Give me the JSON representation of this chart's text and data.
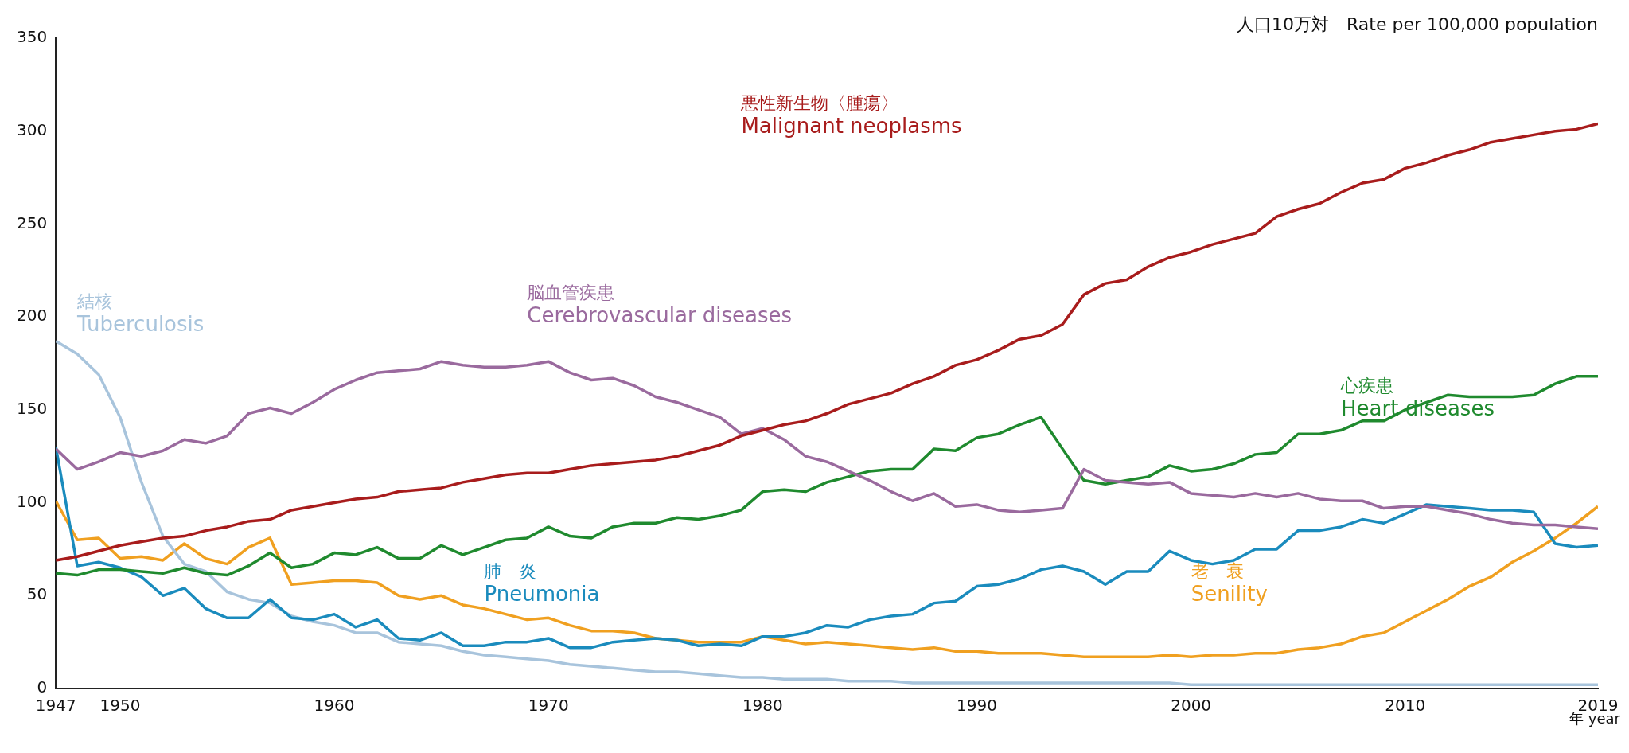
{
  "chart_data": {
    "type": "line",
    "ylabel": "人口10万対　Rate per 100,000 population",
    "xlabel": "年 year",
    "x": [
      1947,
      1948,
      1949,
      1950,
      1951,
      1952,
      1953,
      1954,
      1955,
      1956,
      1957,
      1958,
      1959,
      1960,
      1961,
      1962,
      1963,
      1964,
      1965,
      1966,
      1967,
      1968,
      1969,
      1970,
      1971,
      1972,
      1973,
      1974,
      1975,
      1976,
      1977,
      1978,
      1979,
      1980,
      1981,
      1982,
      1983,
      1984,
      1985,
      1986,
      1987,
      1988,
      1989,
      1990,
      1991,
      1992,
      1993,
      1994,
      1995,
      1996,
      1997,
      1998,
      1999,
      2000,
      2001,
      2002,
      2003,
      2004,
      2005,
      2006,
      2007,
      2008,
      2009,
      2010,
      2011,
      2012,
      2013,
      2014,
      2015,
      2016,
      2017,
      2018,
      2019
    ],
    "xlim": [
      1947,
      2019
    ],
    "xticks": [
      1947,
      1950,
      1960,
      1970,
      1980,
      1990,
      2000,
      2010,
      2019
    ],
    "ylim": [
      0,
      350
    ],
    "yticks": [
      0,
      50,
      100,
      150,
      200,
      250,
      300,
      350
    ],
    "grid": false,
    "legend": false,
    "marker": "none",
    "line_style": "solid",
    "series": [
      {
        "name": "悪性新生物〈腫瘍〉\nMalignant neoplasms",
        "color": "#a81c1c",
        "values": [
          69,
          71,
          74,
          77,
          79,
          81,
          82,
          85,
          87,
          90,
          91,
          96,
          98,
          100,
          102,
          103,
          106,
          107,
          108,
          111,
          113,
          115,
          116,
          116,
          118,
          120,
          121,
          122,
          123,
          125,
          128,
          131,
          136,
          139,
          142,
          144,
          148,
          153,
          156,
          159,
          164,
          168,
          174,
          177,
          182,
          188,
          190,
          196,
          212,
          218,
          220,
          227,
          232,
          235,
          239,
          242,
          245,
          254,
          258,
          261,
          267,
          272,
          274,
          280,
          283,
          287,
          290,
          294,
          296,
          298,
          300,
          301,
          304
        ]
      },
      {
        "name": "脳血管疾患\nCerebrovascular diseases",
        "color": "#9a6a9e",
        "values": [
          129,
          118,
          122,
          127,
          125,
          128,
          134,
          132,
          136,
          148,
          151,
          148,
          154,
          161,
          166,
          170,
          171,
          172,
          176,
          174,
          173,
          173,
          174,
          176,
          170,
          166,
          167,
          163,
          157,
          154,
          150,
          146,
          137,
          140,
          134,
          125,
          122,
          117,
          112,
          106,
          101,
          105,
          98,
          99,
          96,
          95,
          96,
          97,
          118,
          112,
          111,
          110,
          111,
          105,
          104,
          103,
          105,
          103,
          105,
          102,
          101,
          101,
          97,
          98,
          98,
          96,
          94,
          91,
          89,
          88,
          88,
          87,
          86
        ]
      },
      {
        "name": "心疾患\nHeart diseases",
        "color": "#1f8a2e",
        "values": [
          62,
          61,
          64,
          64,
          63,
          62,
          65,
          62,
          61,
          66,
          73,
          65,
          67,
          73,
          72,
          76,
          70,
          70,
          77,
          72,
          76,
          80,
          81,
          87,
          82,
          81,
          87,
          89,
          89,
          92,
          91,
          93,
          96,
          106,
          107,
          106,
          111,
          114,
          117,
          118,
          118,
          129,
          128,
          135,
          137,
          142,
          146,
          129,
          112,
          110,
          112,
          114,
          120,
          117,
          118,
          121,
          126,
          127,
          137,
          137,
          139,
          144,
          144,
          150,
          154,
          158,
          157,
          157,
          157,
          158,
          164,
          168,
          168
        ]
      },
      {
        "name": "肺　炎\nPneumonia",
        "color": "#1a8bbd",
        "values": [
          130,
          66,
          68,
          65,
          60,
          50,
          54,
          43,
          38,
          38,
          48,
          38,
          37,
          40,
          33,
          37,
          27,
          26,
          30,
          23,
          23,
          25,
          25,
          27,
          22,
          22,
          25,
          26,
          27,
          26,
          23,
          24,
          23,
          28,
          28,
          30,
          34,
          33,
          37,
          39,
          40,
          46,
          47,
          55,
          56,
          59,
          64,
          66,
          63,
          56,
          63,
          63,
          74,
          69,
          67,
          69,
          75,
          75,
          85,
          85,
          87,
          91,
          89,
          94,
          99,
          98,
          97,
          96,
          96,
          95,
          78,
          76,
          77
        ]
      },
      {
        "name": "結核\nTuberculosis",
        "color": "#a8c4dc",
        "values": [
          187,
          180,
          169,
          146,
          111,
          82,
          67,
          63,
          52,
          48,
          46,
          39,
          36,
          34,
          30,
          30,
          25,
          24,
          23,
          20,
          18,
          17,
          16,
          15,
          13,
          12,
          11,
          10,
          9,
          9,
          8,
          7,
          6,
          6,
          5,
          5,
          5,
          4,
          4,
          4,
          3,
          3,
          3,
          3,
          3,
          3,
          3,
          3,
          3,
          3,
          3,
          3,
          3,
          2,
          2,
          2,
          2,
          2,
          2,
          2,
          2,
          2,
          2,
          2,
          2,
          2,
          2,
          2,
          2,
          2,
          2,
          2,
          2
        ]
      },
      {
        "name": "老　衰\nSenility",
        "color": "#f0a020",
        "values": [
          101,
          80,
          81,
          70,
          71,
          69,
          78,
          70,
          67,
          76,
          81,
          56,
          57,
          58,
          58,
          57,
          50,
          48,
          50,
          45,
          43,
          40,
          37,
          38,
          34,
          31,
          31,
          30,
          27,
          26,
          25,
          25,
          25,
          28,
          26,
          24,
          25,
          24,
          23,
          22,
          21,
          22,
          20,
          20,
          19,
          19,
          19,
          18,
          17,
          17,
          17,
          17,
          18,
          17,
          18,
          18,
          19,
          19,
          21,
          22,
          24,
          28,
          30,
          36,
          42,
          48,
          55,
          60,
          68,
          74,
          81,
          89,
          98
        ]
      }
    ]
  }
}
